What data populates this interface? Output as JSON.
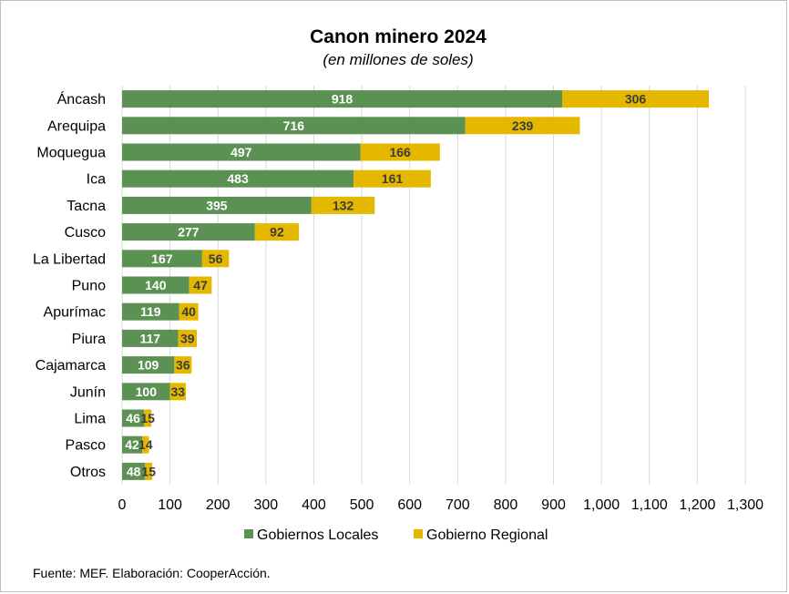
{
  "chart_data": {
    "type": "bar",
    "orientation": "horizontal",
    "stacked": true,
    "title": "Canon minero 2024",
    "subtitle": "(en millones de soles)",
    "categories": [
      "Áncash",
      "Arequipa",
      "Moquegua",
      "Ica",
      "Tacna",
      "Cusco",
      "La Libertad",
      "Puno",
      "Apurímac",
      "Piura",
      "Cajamarca",
      "Junín",
      "Lima",
      "Pasco",
      "Otros"
    ],
    "series": [
      {
        "name": "Gobiernos Locales",
        "color": "#5b9153",
        "values": [
          918,
          716,
          497,
          483,
          395,
          277,
          167,
          140,
          119,
          117,
          109,
          100,
          46,
          42,
          48
        ]
      },
      {
        "name": "Gobierno Regional",
        "color": "#e5b800",
        "values": [
          306,
          239,
          166,
          161,
          132,
          92,
          56,
          47,
          40,
          39,
          36,
          33,
          15,
          14,
          15
        ]
      }
    ],
    "xlim": [
      0,
      1300
    ],
    "xticks": [
      0,
      100,
      200,
      300,
      400,
      500,
      600,
      700,
      800,
      900,
      1000,
      1100,
      1200,
      1300
    ],
    "xtick_labels": [
      "0",
      "100",
      "200",
      "300",
      "400",
      "500",
      "600",
      "700",
      "800",
      "900",
      "1,000",
      "1,100",
      "1,200",
      "1,300"
    ],
    "grid": "vertical",
    "legend": "bottom"
  },
  "source": "Fuente: MEF. Elaboración: CooperAcción."
}
